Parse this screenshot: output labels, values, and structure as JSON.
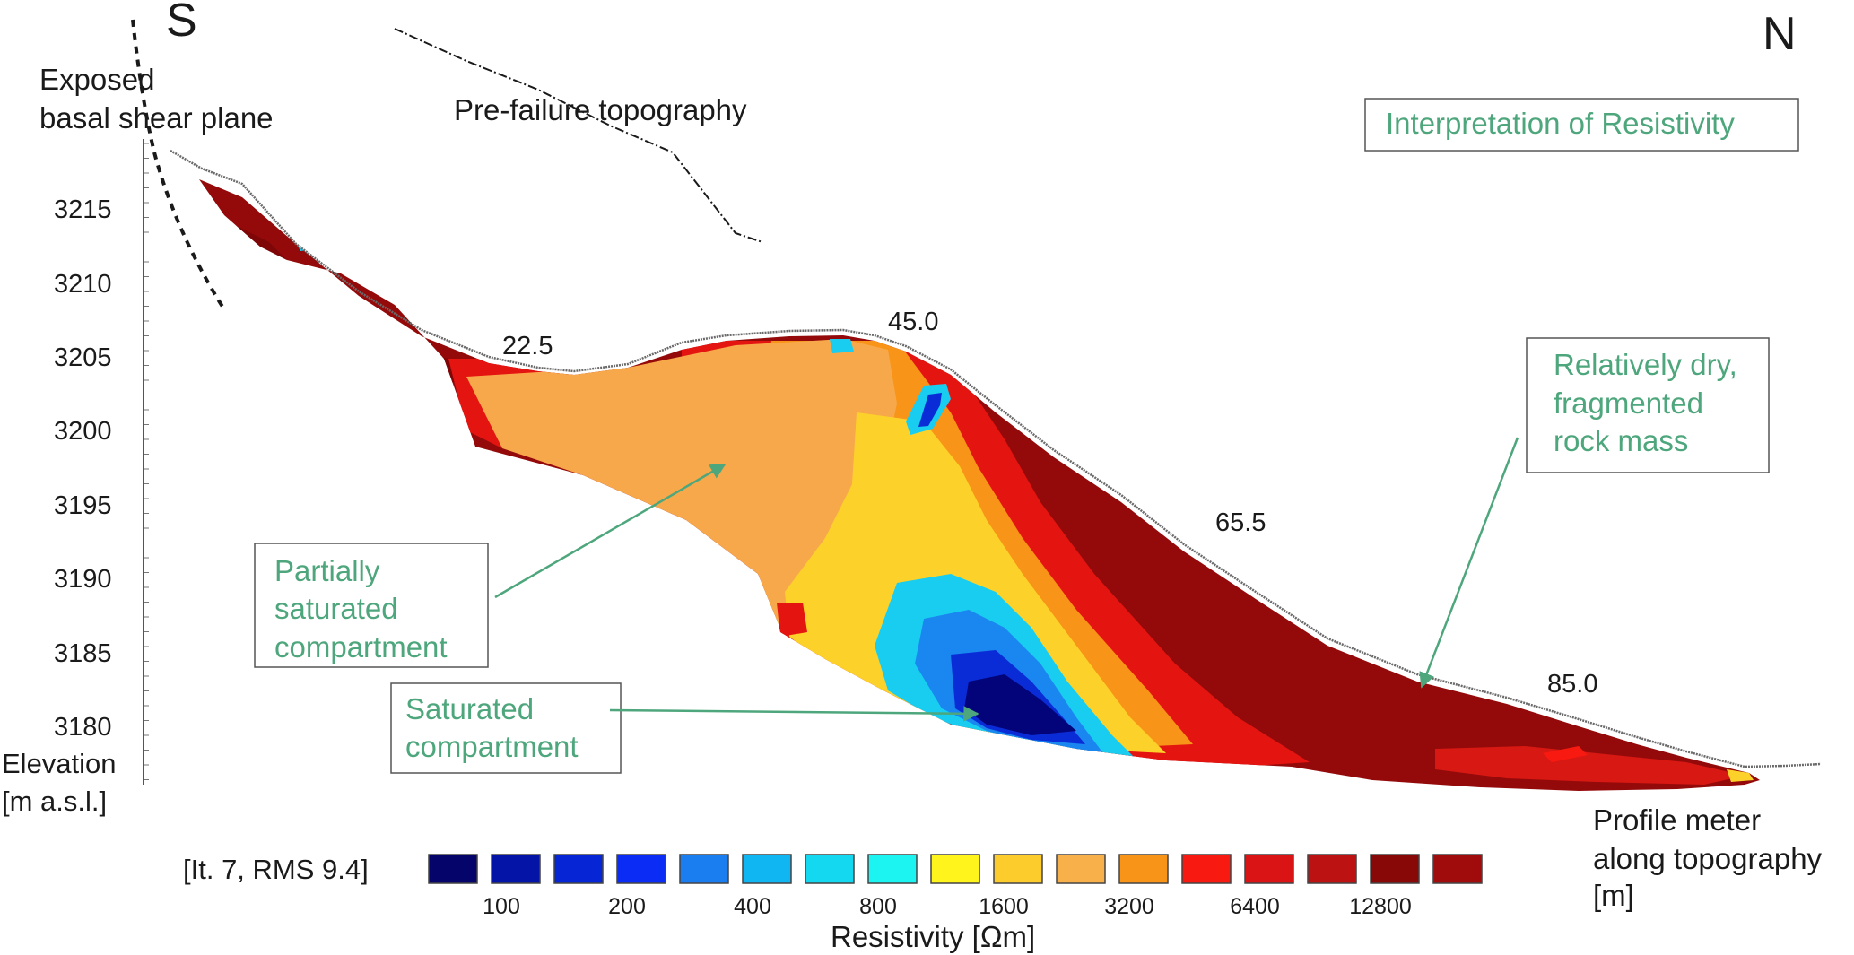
{
  "orientation": {
    "south": "S",
    "north": "N"
  },
  "annotations": {
    "basal_shear_line1": "Exposed",
    "basal_shear_line2": "basal shear plane",
    "pre_failure": "Pre-failure topography",
    "interpretation_title": "Interpretation of Resistivity",
    "dry_line1": "Relatively dry,",
    "dry_line2": "fragmented",
    "dry_line3": "rock mass",
    "partial_line1": "Partially",
    "partial_line2": "saturated",
    "partial_line3": "compartment",
    "saturated_line1": "Saturated",
    "saturated_line2": "compartment"
  },
  "elevation_axis": {
    "label_line1": "Elevation",
    "label_line2": "[m a.s.l.]",
    "ticks": [
      "3215",
      "3210",
      "3205",
      "3200",
      "3195",
      "3190",
      "3185",
      "3180"
    ]
  },
  "profile_axis": {
    "label_line1": "Profile meter",
    "label_line2": "along topography",
    "label_line3": "[m]",
    "markers": [
      "22.5",
      "45.0",
      "65.5",
      "85.0"
    ]
  },
  "colorbar": {
    "iteration_label": "[It. 7, RMS 9.4]",
    "title": "Resistivity [Ωm]",
    "swatches": [
      "#04046b",
      "#0414a6",
      "#0626d6",
      "#0a2cf5",
      "#1a7ef0",
      "#10b6f2",
      "#14d8f0",
      "#1cf4f2",
      "#fff41c",
      "#fccc2c",
      "#f8b04a",
      "#f89418",
      "#f81a10",
      "#da1414",
      "#bc1212",
      "#880808",
      "#a00c0c"
    ],
    "tick_labels": [
      "100",
      "200",
      "400",
      "800",
      "1600",
      "3200",
      "6400",
      "12800"
    ]
  },
  "colors": {
    "annotation_green": "#4ea67c",
    "dark_red": "#940a0a",
    "red": "#e41410",
    "orange": "#f7a84a",
    "yellow": "#fcd22a",
    "cyan": "#18cdf0",
    "blue": "#0a2cd6",
    "navy": "#04047a"
  }
}
